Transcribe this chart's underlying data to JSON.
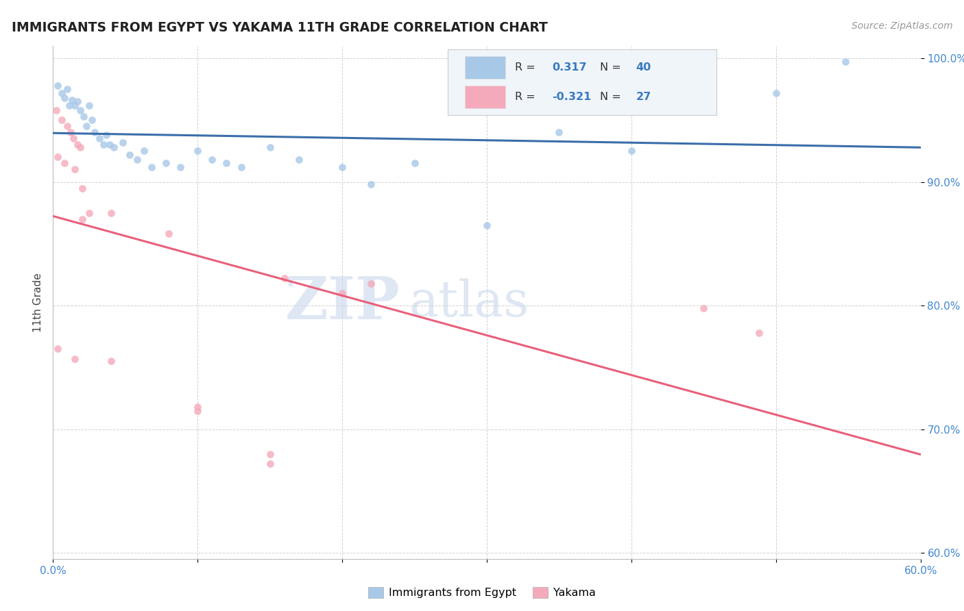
{
  "title": "IMMIGRANTS FROM EGYPT VS YAKAMA 11TH GRADE CORRELATION CHART",
  "source_text": "Source: ZipAtlas.com",
  "ylabel": "11th Grade",
  "xlim": [
    0.0,
    0.6
  ],
  "ylim": [
    0.595,
    1.01
  ],
  "xtick_positions": [
    0.0,
    0.1,
    0.2,
    0.3,
    0.4,
    0.5,
    0.6
  ],
  "xticklabels": [
    "0.0%",
    "",
    "",
    "",
    "",
    "",
    "60.0%"
  ],
  "ytick_positions": [
    0.6,
    0.7,
    0.8,
    0.9,
    1.0
  ],
  "yticklabels": [
    "60.0%",
    "70.0%",
    "80.0%",
    "90.0%",
    "100.0%"
  ],
  "blue_R": 0.317,
  "blue_N": 40,
  "pink_R": -0.321,
  "pink_N": 27,
  "blue_dot_color": "#a8c8e8",
  "pink_dot_color": "#f5aabb",
  "blue_line_color": "#3a6eaa",
  "pink_line_color": "#e8607a",
  "blue_scatter": [
    [
      0.003,
      0.978
    ],
    [
      0.006,
      0.972
    ],
    [
      0.008,
      0.968
    ],
    [
      0.01,
      0.975
    ],
    [
      0.011,
      0.962
    ],
    [
      0.013,
      0.966
    ],
    [
      0.015,
      0.962
    ],
    [
      0.017,
      0.965
    ],
    [
      0.019,
      0.958
    ],
    [
      0.021,
      0.953
    ],
    [
      0.023,
      0.945
    ],
    [
      0.025,
      0.962
    ],
    [
      0.027,
      0.95
    ],
    [
      0.029,
      0.94
    ],
    [
      0.032,
      0.935
    ],
    [
      0.035,
      0.93
    ],
    [
      0.037,
      0.938
    ],
    [
      0.039,
      0.93
    ],
    [
      0.042,
      0.928
    ],
    [
      0.048,
      0.932
    ],
    [
      0.053,
      0.922
    ],
    [
      0.058,
      0.918
    ],
    [
      0.063,
      0.925
    ],
    [
      0.068,
      0.912
    ],
    [
      0.078,
      0.915
    ],
    [
      0.088,
      0.912
    ],
    [
      0.1,
      0.925
    ],
    [
      0.11,
      0.918
    ],
    [
      0.12,
      0.915
    ],
    [
      0.13,
      0.912
    ],
    [
      0.15,
      0.928
    ],
    [
      0.17,
      0.918
    ],
    [
      0.2,
      0.912
    ],
    [
      0.22,
      0.898
    ],
    [
      0.25,
      0.915
    ],
    [
      0.3,
      0.865
    ],
    [
      0.35,
      0.94
    ],
    [
      0.4,
      0.925
    ],
    [
      0.5,
      0.972
    ],
    [
      0.548,
      0.997
    ]
  ],
  "pink_scatter": [
    [
      0.002,
      0.958
    ],
    [
      0.006,
      0.95
    ],
    [
      0.01,
      0.945
    ],
    [
      0.012,
      0.94
    ],
    [
      0.014,
      0.935
    ],
    [
      0.017,
      0.93
    ],
    [
      0.019,
      0.928
    ],
    [
      0.003,
      0.92
    ],
    [
      0.008,
      0.915
    ],
    [
      0.015,
      0.91
    ],
    [
      0.02,
      0.895
    ],
    [
      0.025,
      0.875
    ],
    [
      0.02,
      0.87
    ],
    [
      0.04,
      0.875
    ],
    [
      0.08,
      0.858
    ],
    [
      0.16,
      0.822
    ],
    [
      0.2,
      0.81
    ],
    [
      0.22,
      0.818
    ],
    [
      0.003,
      0.765
    ],
    [
      0.015,
      0.757
    ],
    [
      0.1,
      0.715
    ],
    [
      0.15,
      0.68
    ],
    [
      0.04,
      0.755
    ],
    [
      0.1,
      0.718
    ],
    [
      0.15,
      0.672
    ],
    [
      0.45,
      0.798
    ],
    [
      0.488,
      0.778
    ]
  ],
  "bg_color": "#ffffff",
  "grid_color": "#cccccc",
  "tick_color": "#4488cc",
  "title_color": "#222222",
  "legend_face": "#f0f5fa",
  "legend_edge": "#cccccc",
  "watermark_zip_color": "#c8d8ec",
  "watermark_atlas_color": "#c8d8ec"
}
